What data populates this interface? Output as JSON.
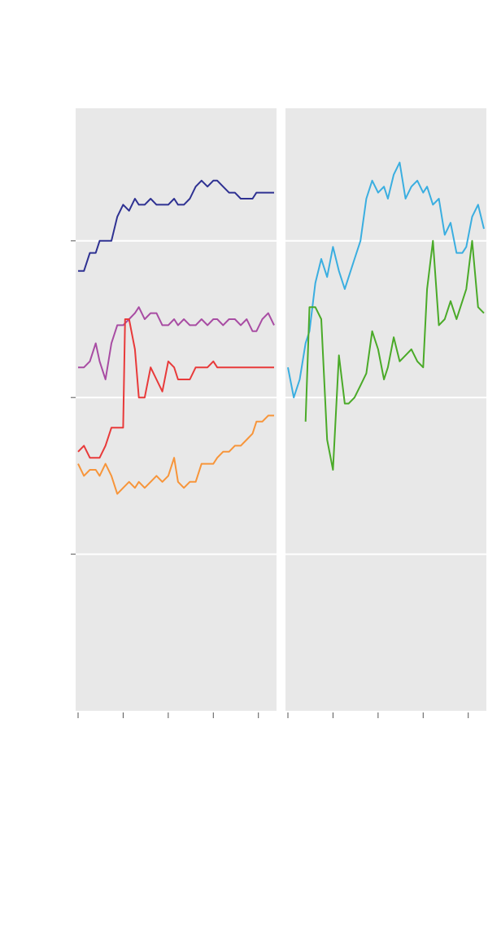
{
  "colors": {
    "panel_background": "#e8e8e8",
    "gridline": "#ffffff",
    "tick": "#555555",
    "navy": "#2e3192",
    "purple": "#a84ca3",
    "red": "#e83a3a",
    "orange": "#f7953a",
    "light_blue": "#3aaee0",
    "green": "#4aaa28"
  },
  "chart_data": [
    {
      "type": "line",
      "title": "",
      "xlabel": "",
      "ylabel": "",
      "xlim": [
        0,
        100
      ],
      "ylim": [
        0,
        100
      ],
      "x_ticks": [
        0,
        23,
        46,
        69,
        92
      ],
      "y_gridlines": [
        26,
        52,
        78
      ],
      "grid": true,
      "series": [
        {
          "name": "navy",
          "color_key": "navy",
          "x": [
            0,
            3,
            6,
            9,
            11,
            14,
            17,
            20,
            23,
            26,
            29,
            31,
            34,
            37,
            40,
            43,
            46,
            49,
            51,
            54,
            57,
            60,
            63,
            66,
            69,
            71,
            74,
            77,
            80,
            83,
            86,
            89,
            91,
            94,
            97,
            100
          ],
          "y": [
            73,
            73,
            76,
            76,
            78,
            78,
            78,
            82,
            84,
            83,
            85,
            84,
            84,
            85,
            84,
            84,
            84,
            85,
            84,
            84,
            85,
            87,
            88,
            87,
            88,
            88,
            87,
            86,
            86,
            85,
            85,
            85,
            86,
            86,
            86,
            86
          ]
        },
        {
          "name": "purple",
          "color_key": "purple",
          "x": [
            0,
            3,
            6,
            9,
            11,
            14,
            17,
            20,
            23,
            26,
            29,
            31,
            34,
            37,
            40,
            43,
            46,
            49,
            51,
            54,
            57,
            60,
            63,
            66,
            69,
            71,
            74,
            77,
            80,
            83,
            86,
            89,
            91,
            94,
            97,
            100
          ],
          "y": [
            57,
            57,
            58,
            61,
            58,
            55,
            61,
            64,
            64,
            65,
            66,
            67,
            65,
            66,
            66,
            64,
            64,
            65,
            64,
            65,
            64,
            64,
            65,
            64,
            65,
            65,
            64,
            65,
            65,
            64,
            65,
            63,
            63,
            65,
            66,
            64
          ]
        },
        {
          "name": "red",
          "color_key": "red",
          "x": [
            0,
            3,
            6,
            9,
            11,
            14,
            17,
            20,
            23,
            24,
            26,
            29,
            31,
            34,
            37,
            40,
            43,
            46,
            49,
            51,
            54,
            57,
            60,
            63,
            66,
            69,
            71,
            74,
            77,
            80,
            83,
            86,
            89,
            91,
            94,
            97,
            100
          ],
          "y": [
            43,
            44,
            42,
            42,
            42,
            44,
            47,
            47,
            47,
            65,
            65,
            60,
            52,
            52,
            57,
            55,
            53,
            58,
            57,
            55,
            55,
            55,
            57,
            57,
            57,
            58,
            57,
            57,
            57,
            57,
            57,
            57,
            57,
            57,
            57,
            57,
            57
          ]
        },
        {
          "name": "orange",
          "color_key": "orange",
          "x": [
            0,
            3,
            6,
            9,
            11,
            14,
            17,
            20,
            23,
            26,
            29,
            31,
            34,
            37,
            40,
            43,
            46,
            49,
            51,
            54,
            57,
            60,
            63,
            66,
            69,
            71,
            74,
            77,
            80,
            83,
            86,
            89,
            91,
            94,
            97,
            100
          ],
          "y": [
            41,
            39,
            40,
            40,
            39,
            41,
            39,
            36,
            37,
            38,
            37,
            38,
            37,
            38,
            39,
            38,
            39,
            42,
            38,
            37,
            38,
            38,
            41,
            41,
            41,
            42,
            43,
            43,
            44,
            44,
            45,
            46,
            48,
            48,
            49,
            49
          ]
        }
      ]
    },
    {
      "type": "line",
      "title": "",
      "xlabel": "",
      "ylabel": "",
      "xlim": [
        0,
        100
      ],
      "ylim": [
        0,
        100
      ],
      "x_ticks": [
        0,
        23,
        46,
        69,
        92
      ],
      "y_gridlines": [
        26,
        52,
        78
      ],
      "grid": true,
      "series": [
        {
          "name": "light blue",
          "color_key": "light_blue",
          "x": [
            0,
            3,
            6,
            9,
            11,
            14,
            17,
            20,
            23,
            26,
            29,
            31,
            34,
            37,
            40,
            43,
            46,
            49,
            51,
            54,
            57,
            60,
            63,
            66,
            69,
            71,
            74,
            77,
            80,
            83,
            86,
            89,
            91,
            94,
            97,
            100
          ],
          "y": [
            57,
            52,
            55,
            61,
            63,
            71,
            75,
            72,
            77,
            73,
            70,
            72,
            75,
            78,
            85,
            88,
            86,
            87,
            85,
            89,
            91,
            85,
            87,
            88,
            86,
            87,
            84,
            85,
            79,
            81,
            76,
            76,
            77,
            82,
            84,
            80
          ]
        },
        {
          "name": "green",
          "color_key": "green",
          "x": [
            9,
            11,
            14,
            17,
            20,
            23,
            26,
            29,
            31,
            34,
            37,
            40,
            43,
            46,
            49,
            51,
            54,
            57,
            60,
            63,
            66,
            69,
            71,
            74,
            77,
            80,
            83,
            86,
            89,
            91,
            94,
            97,
            100
          ],
          "y": [
            48,
            67,
            67,
            65,
            45,
            40,
            59,
            51,
            51,
            52,
            54,
            56,
            63,
            60,
            55,
            57,
            62,
            58,
            59,
            60,
            58,
            57,
            70,
            78,
            64,
            65,
            68,
            65,
            68,
            70,
            78,
            67,
            66
          ]
        }
      ]
    }
  ]
}
